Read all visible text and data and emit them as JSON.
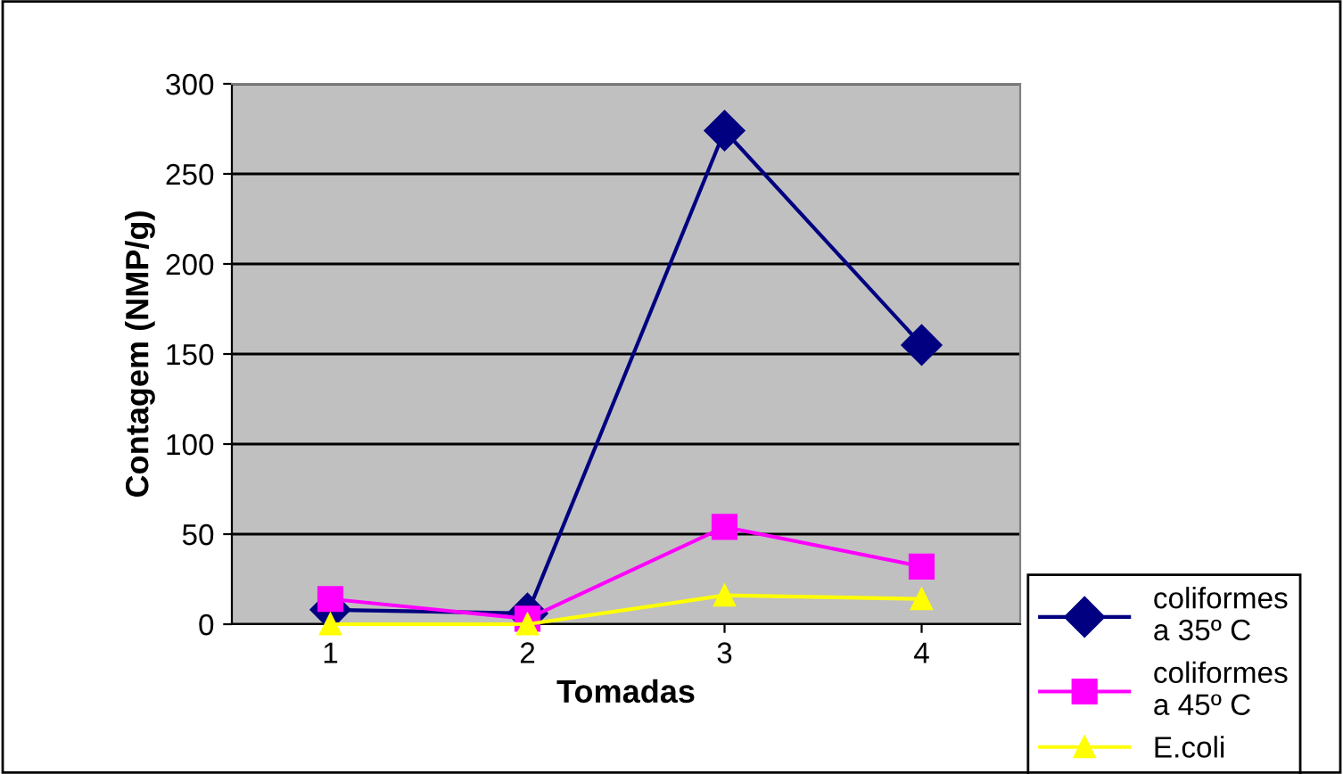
{
  "chart_data": {
    "type": "line",
    "xlabel": "Tomadas",
    "ylabel": "Contagem (NMP/g)",
    "categories": [
      "1",
      "2",
      "3",
      "4"
    ],
    "series": [
      {
        "name": "coliformes\na 35º C",
        "color": "#000080",
        "marker": "diamond",
        "values": [
          8,
          6,
          274,
          155
        ]
      },
      {
        "name": "coliformes\na 45º C",
        "color": "#ff00ff",
        "marker": "square",
        "values": [
          14,
          3,
          54,
          32
        ]
      },
      {
        "name": "E.coli",
        "color": "#ffff00",
        "marker": "triangle",
        "values": [
          0,
          0,
          16,
          14
        ]
      }
    ],
    "ylim": [
      0,
      300
    ],
    "yticks": [
      0,
      50,
      100,
      150,
      200,
      250,
      300
    ],
    "grid": "y",
    "legend": "bottom right"
  }
}
